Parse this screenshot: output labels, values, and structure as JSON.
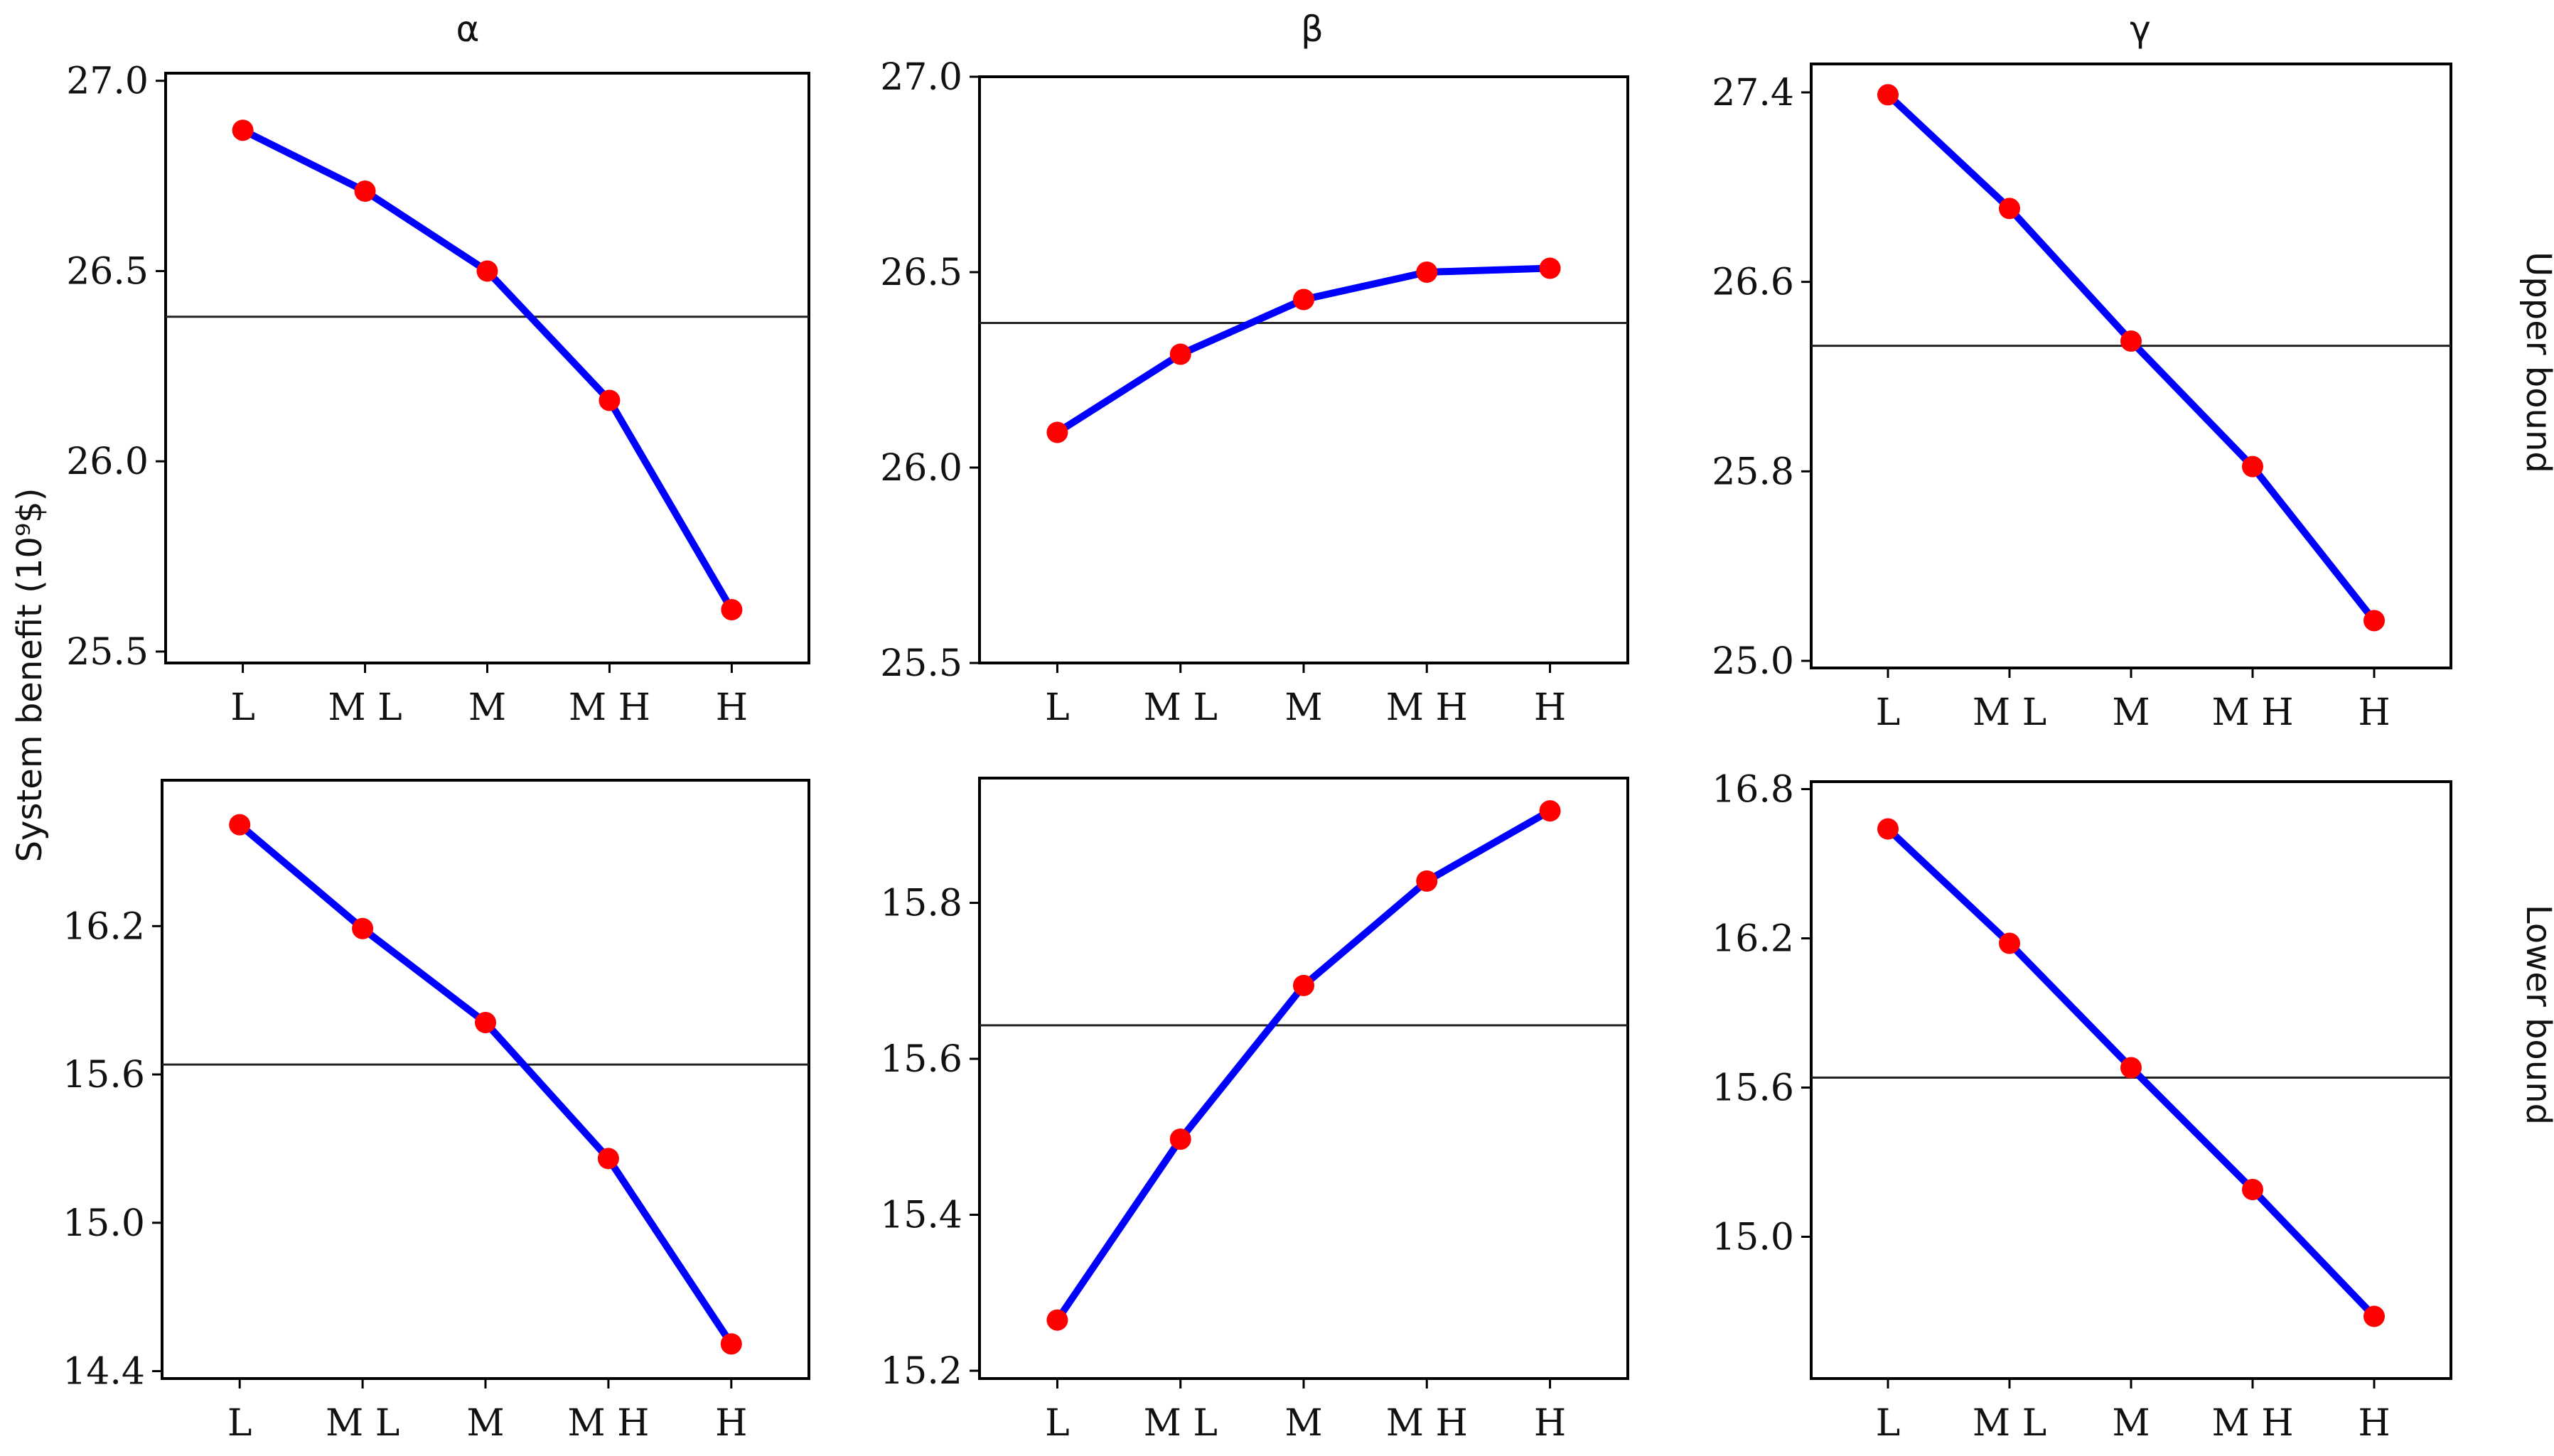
{
  "y_axis_title": "System benefit (10⁹$)",
  "column_titles": [
    "α",
    "β",
    "γ"
  ],
  "row_labels": [
    "Upper bound",
    "Lower bound"
  ],
  "colors": {
    "line": "#0000ff",
    "marker": "#ff0000",
    "reference": "#222222",
    "frame": "#000000"
  },
  "chart_data": [
    {
      "type": "line",
      "panel": "alpha-upper",
      "title": "α",
      "row": "Upper bound",
      "categories": [
        "L",
        "M L",
        "M",
        "M H",
        "H"
      ],
      "values": [
        26.87,
        26.71,
        26.5,
        26.16,
        25.61
      ],
      "reference_line": 26.38,
      "ylim": [
        25.47,
        27.02
      ],
      "yticks": [
        25.5,
        26.0,
        26.5,
        27.0
      ],
      "ytick_labels": [
        "25.5",
        "26.0",
        "26.5",
        "27.0"
      ]
    },
    {
      "type": "line",
      "panel": "beta-upper",
      "title": "β",
      "row": "Upper bound",
      "categories": [
        "L",
        "M L",
        "M",
        "M H",
        "H"
      ],
      "values": [
        26.09,
        26.29,
        26.43,
        26.5,
        26.51
      ],
      "reference_line": 26.37,
      "ylim": [
        25.5,
        27.0
      ],
      "yticks": [
        25.5,
        26.0,
        26.5,
        27.0
      ],
      "ytick_labels": [
        "25.5",
        "26.0",
        "26.5",
        "27.0"
      ]
    },
    {
      "type": "line",
      "panel": "gamma-upper",
      "title": "γ",
      "row": "Upper bound",
      "categories": [
        "L",
        "M L",
        "M",
        "M H",
        "H"
      ],
      "values": [
        27.39,
        26.91,
        26.35,
        25.82,
        25.17
      ],
      "reference_line": 26.33,
      "ylim": [
        24.97,
        27.52
      ],
      "yticks": [
        25.0,
        25.8,
        26.6,
        27.4
      ],
      "ytick_labels": [
        "25.0",
        "25.8",
        "26.6",
        "27.4"
      ]
    },
    {
      "type": "line",
      "panel": "alpha-lower",
      "title": "α",
      "row": "Lower bound",
      "categories": [
        "L",
        "M L",
        "M",
        "M H",
        "H"
      ],
      "values": [
        16.61,
        16.19,
        15.81,
        15.26,
        14.51
      ],
      "reference_line": 15.64,
      "ylim": [
        14.37,
        16.79
      ],
      "yticks": [
        14.4,
        15.0,
        15.6,
        16.2
      ],
      "ytick_labels": [
        "14.4",
        "15.0",
        "15.6",
        "16.2"
      ]
    },
    {
      "type": "line",
      "panel": "beta-lower",
      "title": "β",
      "row": "Lower bound",
      "categories": [
        "L",
        "M L",
        "M",
        "M H",
        "H"
      ],
      "values": [
        15.265,
        15.497,
        15.694,
        15.828,
        15.918
      ],
      "reference_line": 15.643,
      "ylim": [
        15.19,
        15.96
      ],
      "yticks": [
        15.2,
        15.4,
        15.6,
        15.8
      ],
      "ytick_labels": [
        "15.2",
        "15.4",
        "15.6",
        "15.8"
      ]
    },
    {
      "type": "line",
      "panel": "gamma-lower",
      "title": "γ",
      "row": "Lower bound",
      "categories": [
        "L",
        "M L",
        "M",
        "M H",
        "H"
      ],
      "values": [
        16.64,
        16.18,
        15.68,
        15.19,
        14.68
      ],
      "reference_line": 15.64,
      "ylim": [
        14.43,
        16.83
      ],
      "yticks": [
        15.0,
        15.6,
        16.2,
        16.8
      ],
      "ytick_labels": [
        "15.0",
        "15.6",
        "16.2",
        "16.8"
      ]
    }
  ]
}
